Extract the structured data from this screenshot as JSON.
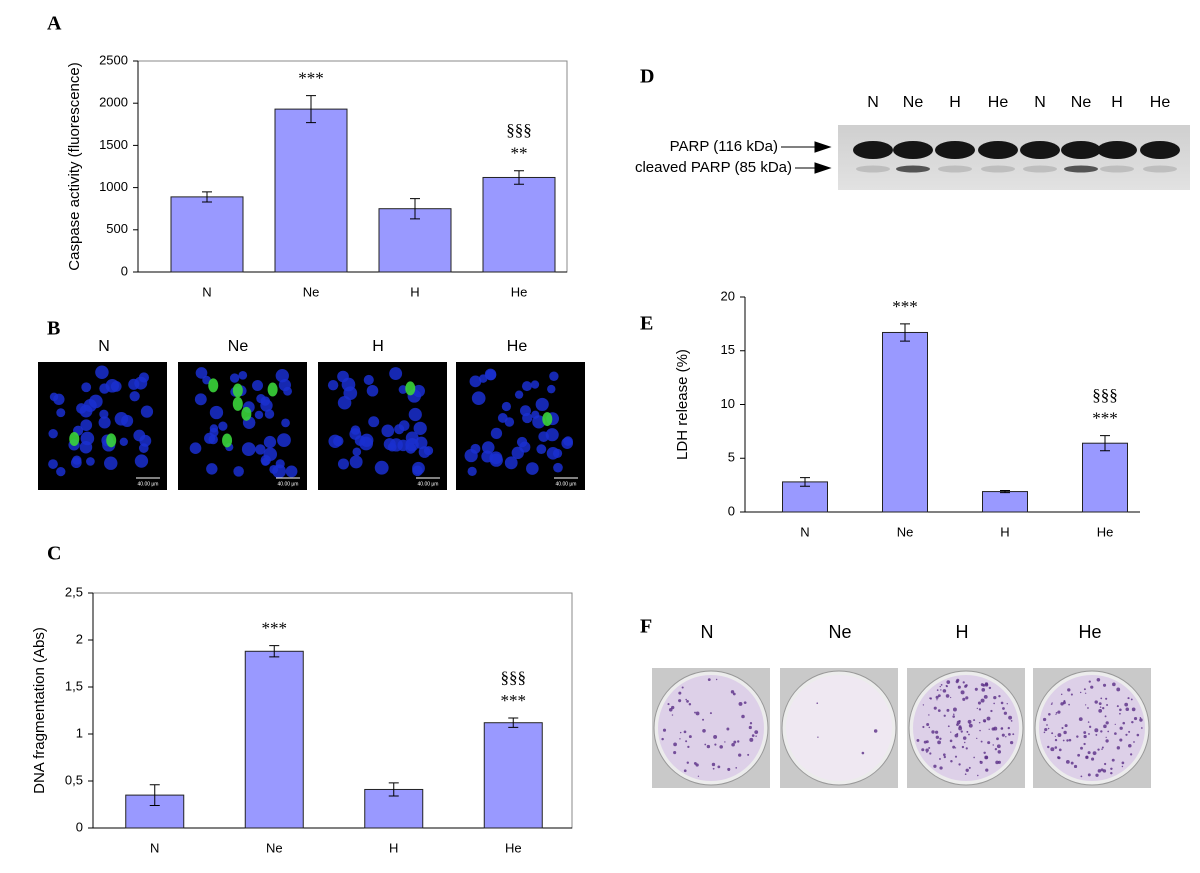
{
  "chart_data": [
    {
      "type": "bar",
      "panel_label": "A",
      "y_label": "Caspase activity (fluorescence)",
      "categories": [
        "N",
        "Ne",
        "H",
        "He"
      ],
      "values": [
        890,
        1930,
        750,
        1120
      ],
      "errors": [
        60,
        160,
        120,
        80
      ],
      "color": "#9999ff",
      "frame": true,
      "ylim": [
        0,
        2500
      ],
      "yticks": [
        0,
        500,
        1000,
        1500,
        2000,
        2500
      ],
      "annotations": [
        {
          "category": "Ne",
          "lines": [
            "***"
          ]
        },
        {
          "category": "He",
          "lines": [
            "§§§",
            "**"
          ]
        }
      ]
    },
    {
      "type": "bar",
      "panel_label": "C",
      "y_label": "DNA fragmentation (Abs)",
      "categories": [
        "N",
        "Ne",
        "H",
        "He"
      ],
      "values": [
        0.35,
        1.88,
        0.41,
        1.12
      ],
      "errors": [
        0.11,
        0.06,
        0.07,
        0.05
      ],
      "color": "#9999ff",
      "frame": true,
      "ylim": [
        0,
        2.5
      ],
      "yticks": [
        0,
        {
          "value": 0.5,
          "label": "0,5"
        },
        1,
        {
          "value": 1.5,
          "label": "1,5"
        },
        2,
        {
          "value": 2.5,
          "label": "2,5"
        }
      ],
      "annotations": [
        {
          "category": "Ne",
          "lines": [
            "***"
          ]
        },
        {
          "category": "He",
          "lines": [
            "§§§",
            "***"
          ]
        }
      ]
    },
    {
      "type": "bar",
      "panel_label": "E",
      "y_label": "LDH release (%)",
      "categories": [
        "N",
        "Ne",
        "H",
        "He"
      ],
      "values": [
        2.8,
        16.7,
        1.9,
        6.4
      ],
      "errors": [
        0.4,
        0.8,
        0.1,
        0.7
      ],
      "color": "#9999ff",
      "frame": false,
      "ylim": [
        0,
        20
      ],
      "yticks": [
        0,
        5,
        10,
        15,
        20
      ],
      "annotations": [
        {
          "category": "Ne",
          "lines": [
            "***"
          ]
        },
        {
          "category": "He",
          "lines": [
            "§§§",
            "***"
          ]
        }
      ]
    }
  ],
  "figure_panels": {
    "B": {
      "panel_label": "B",
      "lanes": [
        "N",
        "Ne",
        "H",
        "He"
      ],
      "scale_bars": [
        "40.00 µm",
        "40.00 µm",
        "40.00 µm",
        "40.00 µm"
      ]
    },
    "D": {
      "panel_label": "D",
      "lanes": [
        "N",
        "Ne",
        "H",
        "He",
        "N",
        "Ne",
        "H",
        "He"
      ],
      "bands": [
        "PARP (116 kDa)",
        "cleaved PARP (85 kDa)"
      ]
    },
    "F": {
      "panel_label": "F",
      "lanes": [
        "N",
        "Ne",
        "H",
        "He"
      ]
    }
  }
}
